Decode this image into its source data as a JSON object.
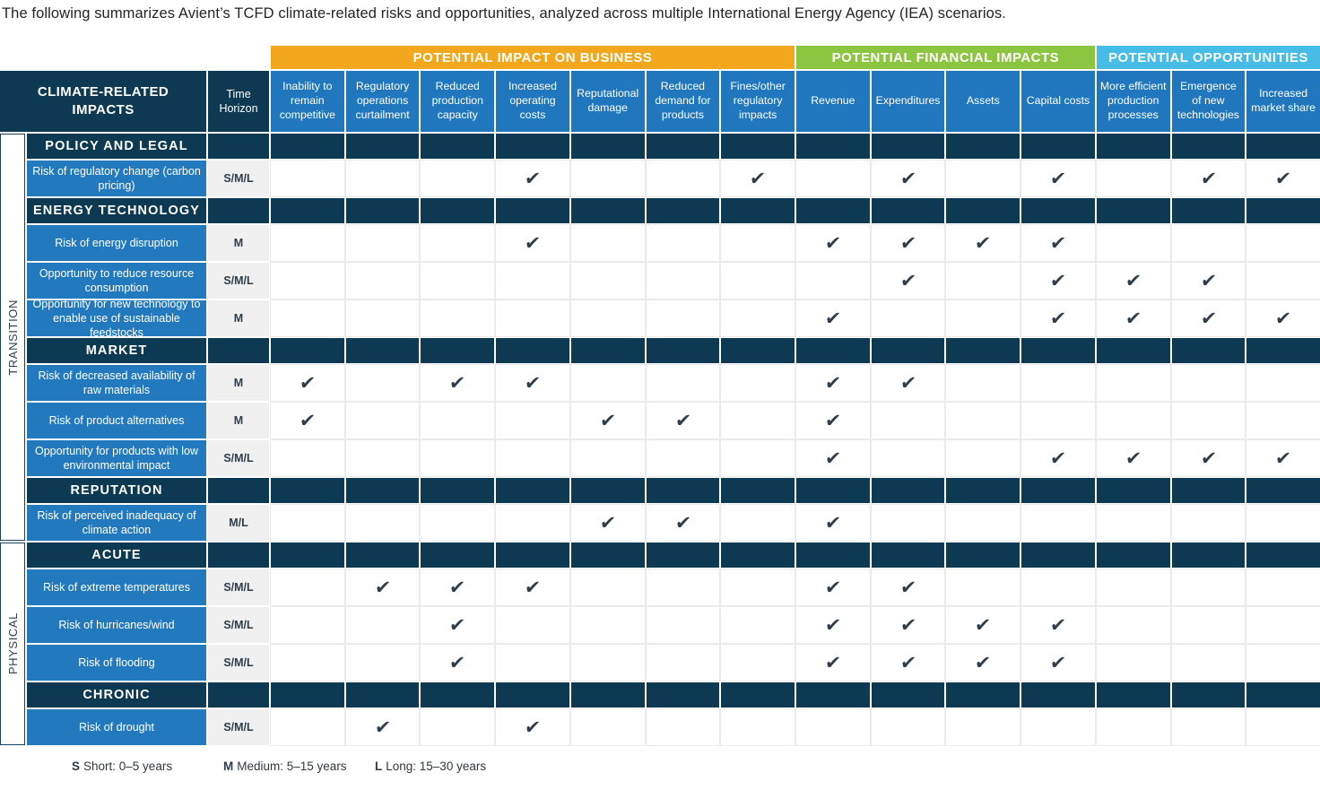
{
  "title": "The following summarizes Avient’s TCFD climate-related risks and opportunities, analyzed across multiple International Energy Agency (IEA) scenarios.",
  "table": {
    "corner_header": "CLIMATE-RELATED IMPACTS",
    "time_header": "Time Horizon",
    "check_glyph": "✔",
    "groups": [
      {
        "label": "POTENTIAL IMPACT ON BUSINESS",
        "color": "#F2A71D",
        "span": 7
      },
      {
        "label": "POTENTIAL FINANCIAL IMPACTS",
        "color": "#8CC540",
        "span": 4
      },
      {
        "label": "POTENTIAL OPPORTUNITIES",
        "color": "#46BCE6",
        "span": 3
      }
    ],
    "columns": [
      "Inability to remain competitive",
      "Regulatory operations curtailment",
      "Reduced production capacity",
      "Increased operating costs",
      "Reputational damage",
      "Reduced demand for products",
      "Fines/other regulatory impacts",
      "Revenue",
      "Expenditures",
      "Assets",
      "Capital costs",
      "More efficient production processes",
      "Emergence of new technologies",
      "Increased market share"
    ],
    "side_groups": [
      {
        "label": "TRANSITION"
      },
      {
        "label": "PHYSICAL"
      }
    ],
    "rows": [
      {
        "type": "section",
        "group": "TRANSITION",
        "label": "POLICY AND LEGAL"
      },
      {
        "type": "data",
        "group": "TRANSITION",
        "label": "Risk of regulatory change (carbon pricing)",
        "time_horizon": "S/M/L",
        "checked_columns": [
          4,
          7,
          9,
          11,
          13,
          14
        ]
      },
      {
        "type": "section",
        "group": "TRANSITION",
        "label": "ENERGY TECHNOLOGY"
      },
      {
        "type": "data",
        "group": "TRANSITION",
        "label": "Risk of energy disruption",
        "time_horizon": "M",
        "checked_columns": [
          4,
          8,
          9,
          10,
          11
        ]
      },
      {
        "type": "data",
        "group": "TRANSITION",
        "label": "Opportunity to reduce resource consumption",
        "time_horizon": "S/M/L",
        "checked_columns": [
          9,
          11,
          12,
          13
        ]
      },
      {
        "type": "data",
        "group": "TRANSITION",
        "label": "Opportunity for new technology to enable use of sustainable feedstocks",
        "time_horizon": "M",
        "checked_columns": [
          8,
          11,
          12,
          13,
          14
        ]
      },
      {
        "type": "section",
        "group": "TRANSITION",
        "label": "MARKET"
      },
      {
        "type": "data",
        "group": "TRANSITION",
        "label": "Risk of decreased availability of raw materials",
        "time_horizon": "M",
        "checked_columns": [
          1,
          3,
          4,
          8,
          9
        ]
      },
      {
        "type": "data",
        "group": "TRANSITION",
        "label": "Risk of product alternatives",
        "time_horizon": "M",
        "checked_columns": [
          1,
          5,
          6,
          8
        ]
      },
      {
        "type": "data",
        "group": "TRANSITION",
        "label": "Opportunity for products with low environmental impact",
        "time_horizon": "S/M/L",
        "checked_columns": [
          8,
          11,
          12,
          13,
          14
        ]
      },
      {
        "type": "section",
        "group": "TRANSITION",
        "label": "REPUTATION"
      },
      {
        "type": "data",
        "group": "TRANSITION",
        "label": "Risk of perceived inadequacy of climate action",
        "time_horizon": "M/L",
        "checked_columns": [
          5,
          6,
          8
        ]
      },
      {
        "type": "section",
        "group": "PHYSICAL",
        "label": "ACUTE"
      },
      {
        "type": "data",
        "group": "PHYSICAL",
        "label": "Risk of extreme temperatures",
        "time_horizon": "S/M/L",
        "checked_columns": [
          2,
          3,
          4,
          8,
          9
        ]
      },
      {
        "type": "data",
        "group": "PHYSICAL",
        "label": "Risk of hurricanes/wind",
        "time_horizon": "S/M/L",
        "checked_columns": [
          3,
          8,
          9,
          10,
          11
        ]
      },
      {
        "type": "data",
        "group": "PHYSICAL",
        "label": "Risk of flooding",
        "time_horizon": "S/M/L",
        "checked_columns": [
          3,
          8,
          9,
          10,
          11
        ]
      },
      {
        "type": "section",
        "group": "PHYSICAL",
        "label": "CHRONIC"
      },
      {
        "type": "data",
        "group": "PHYSICAL",
        "label": "Risk of drought",
        "time_horizon": "S/M/L",
        "checked_columns": [
          2,
          4
        ]
      }
    ]
  },
  "legend": [
    {
      "key": "S",
      "text": "Short: 0–5 years"
    },
    {
      "key": "M",
      "text": "Medium: 5–15 years"
    },
    {
      "key": "L",
      "text": "Long: 15–30 years"
    }
  ],
  "colors": {
    "navy": "#0D3A52",
    "column_header_blue": "#2077BD",
    "row_label_blue": "#2379BE",
    "impact_orange": "#F2A71D",
    "financial_green": "#8CC540",
    "opportunity_light_blue": "#46BCE6",
    "time_cell_gray": "#F0F0F1",
    "check_color": "#2E3D49"
  }
}
